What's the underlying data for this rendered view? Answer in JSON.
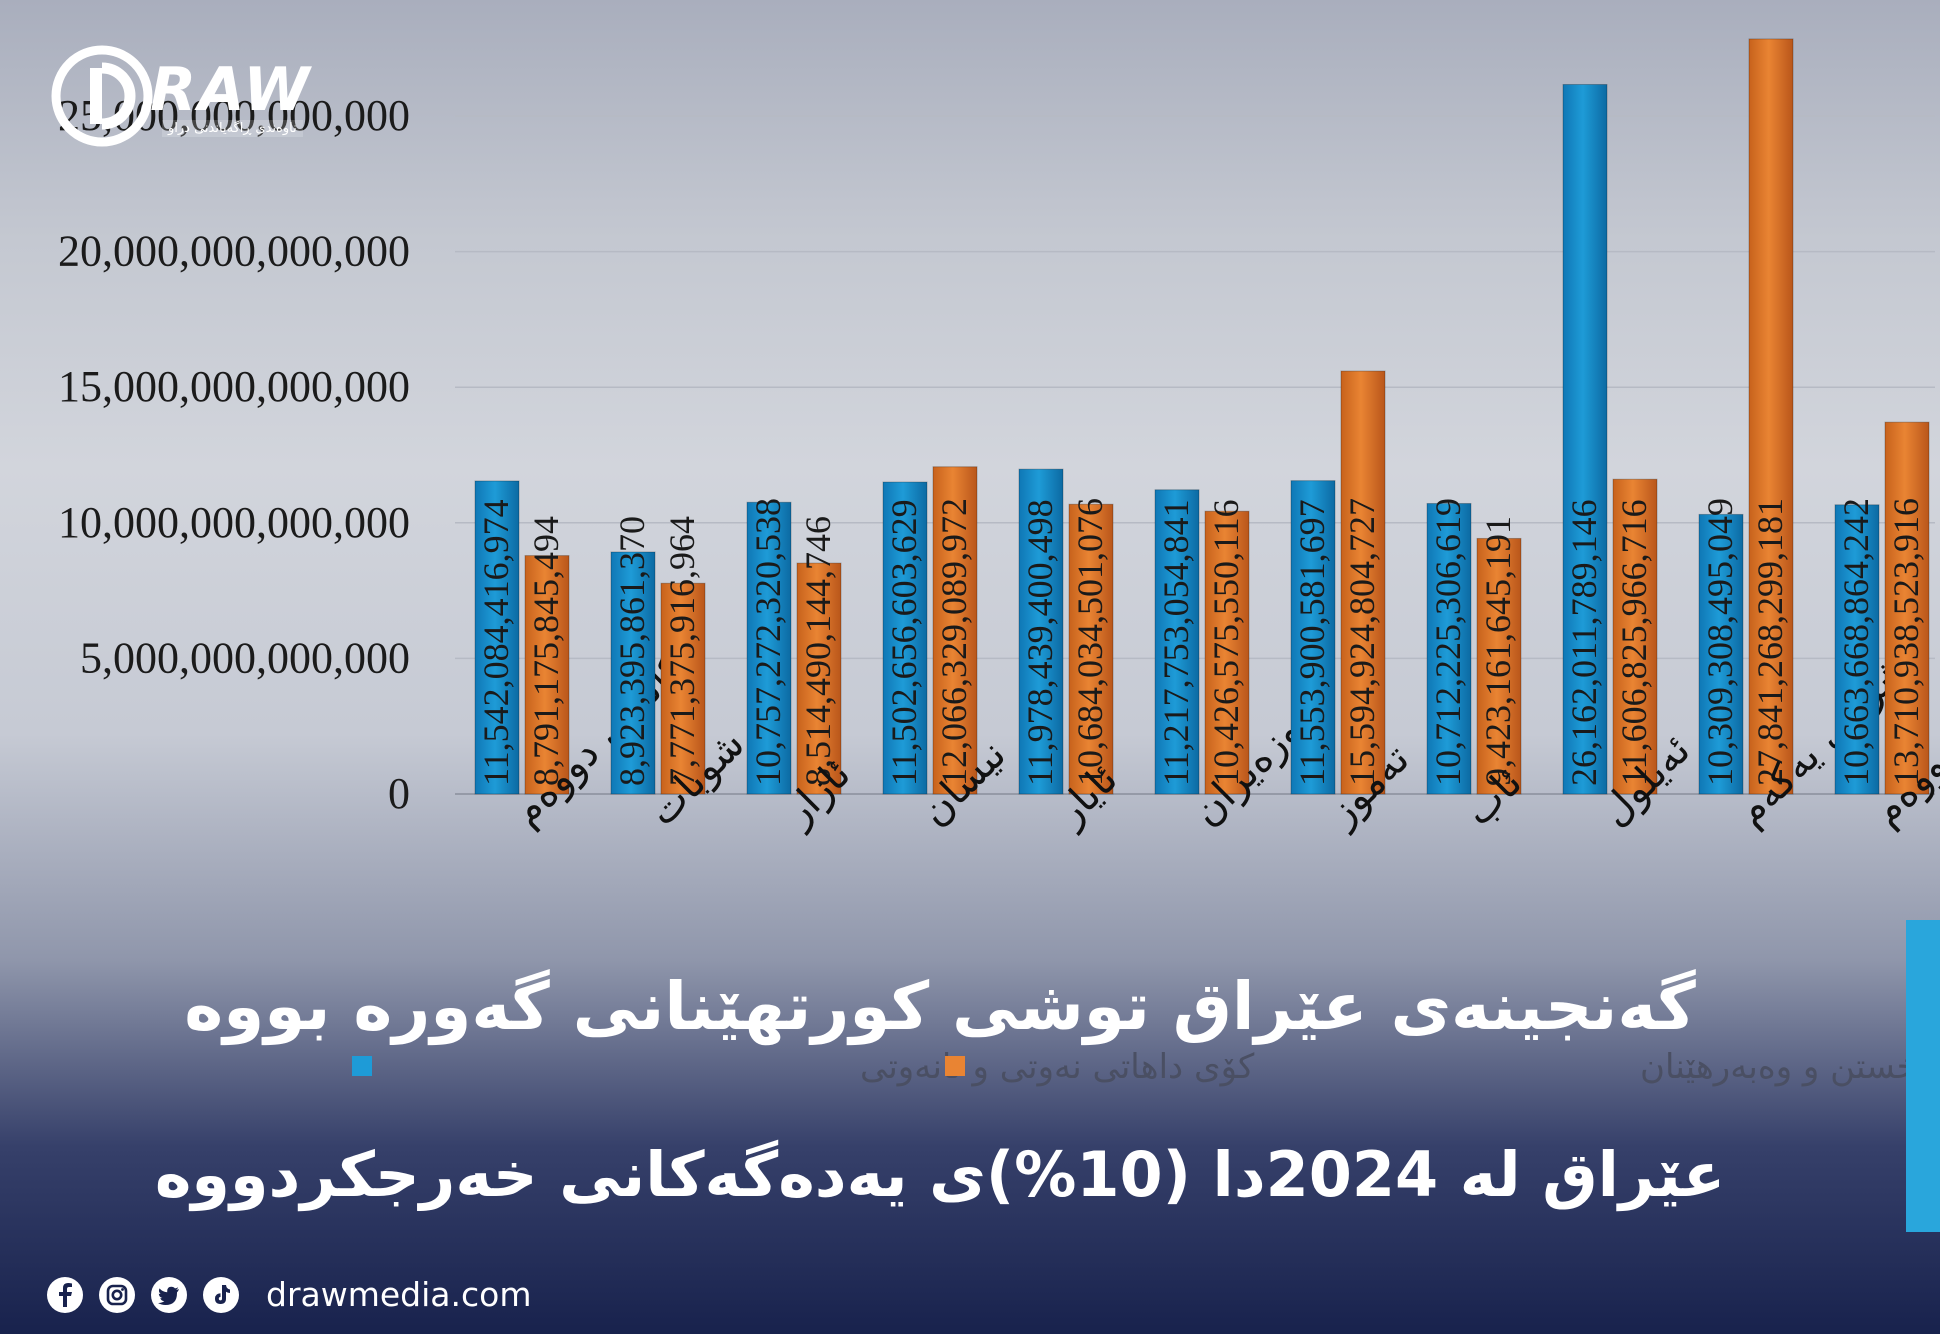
{
  "brand": {
    "logo_text": "RAW",
    "logo_tagline": "ناوەندی ڕاگەیاندنی دراو",
    "website": "drawmedia.com",
    "social_icons": [
      "facebook-icon",
      "instagram-icon",
      "twitter-icon",
      "tiktok-icon"
    ]
  },
  "headline": "گەنجینەی عێراق توشی کورتهێنانی گەورە بووە",
  "subheadline": "عێراق لە 2024دا (10%)ی یەدەگەکانی خەرجکردووە",
  "colors": {
    "revenue": "#1e9bd7",
    "expense": "#e98433",
    "accent": "#29a6dc"
  },
  "chart_data": {
    "type": "bar",
    "categories": [
      "کانونی دووەم",
      "شوبات",
      "ئازار",
      "نیسان",
      "ئایار",
      "حوزەیران",
      "تەموز",
      "ئاب",
      "ئەیلول",
      "تشرینی یەکەم",
      "تشرینی دووەم"
    ],
    "series": [
      {
        "name": "کۆی داهاتی نەوتی و نانەوتی",
        "values": [
          11542084416974,
          8923395861370,
          10757272320538,
          11502656603629,
          11978439400498,
          11217753054841,
          11553900581697,
          10712225306619,
          26162011789146,
          10309308495049,
          10663668864242
        ],
        "labels": [
          "11,542,084,416,974",
          "8,923,395,861,370",
          "10,757,272,320,538",
          "11,502,656,603,629",
          "11,978,439,400,498",
          "11,217,753,054,841",
          "11,553,900,581,697",
          "10,712,225,306,619",
          "26,162,011,789,146",
          "10,309,308,495,049",
          "10,663,668,864,242"
        ]
      },
      {
        "name": "کۆی خەرجی بەکارخستن و وەبەرهێنان",
        "values": [
          8791175845494,
          7771375916964,
          8514490144746,
          12066329089972,
          10684034501076,
          10426575550116,
          15594924804727,
          9423161645191,
          11606825966716,
          27841268299181,
          13710938523916
        ],
        "labels": [
          "8,791,175,845,494",
          "7,771,375,916,964",
          "8,514,490,144,746",
          "12,066,329,089,972",
          "10,684,034,501,076",
          "10,426,575,550,116",
          "15,594,924,804,727",
          "9,423,161,645,191",
          "11,606,825,966,716",
          "27,841,268,299,181",
          "13,710,938,523,916"
        ]
      }
    ],
    "yticks": [
      "0",
      "5,000,000,000,000",
      "10,000,000,000,000",
      "15,000,000,000,000",
      "20,000,000,000,000",
      "25,000,000,000,000"
    ],
    "ytick_values": [
      0,
      5000000000000,
      10000000000000,
      15000000000000,
      20000000000000,
      25000000000000
    ],
    "ylim": [
      0,
      27841268299181
    ],
    "grid": true,
    "legend_position": "bottom"
  }
}
